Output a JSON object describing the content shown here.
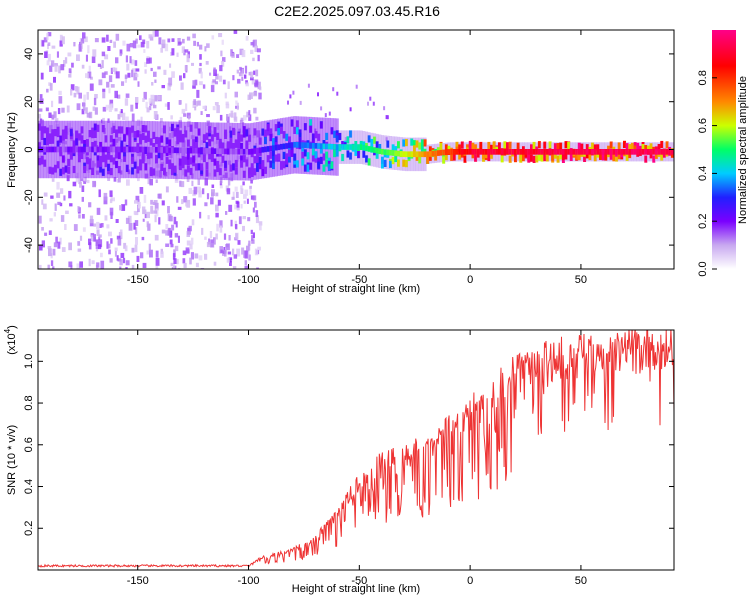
{
  "chart_data": [
    {
      "type": "heatmap",
      "title": "C2E2.2025.097.03.45.R16",
      "xlabel": "Height of straight line (km)",
      "ylabel": "Frequency (Hz)",
      "xlim": [
        -195,
        92
      ],
      "ylim": [
        -50,
        50
      ],
      "xticks": [
        -150,
        -100,
        -50,
        0,
        50
      ],
      "yticks": [
        -40,
        -20,
        0,
        20,
        40
      ],
      "colorbar": {
        "label": "Normalized spectral amplitude",
        "range": [
          0,
          1
        ],
        "ticks": [
          "0.0",
          "0.2",
          "0.4",
          "0.6",
          "0.8"
        ],
        "colors": [
          "#ffffff",
          "#c8a8f0",
          "#7a00ff",
          "#2020ff",
          "#00ccff",
          "#00ff66",
          "#ccff00",
          "#ff8800",
          "#ff0000",
          "#ff0088"
        ]
      },
      "ridge": {
        "description": "spectral ridge near 0 Hz",
        "points": [
          [
            -190,
            0
          ],
          [
            -150,
            0
          ],
          [
            -100,
            -1
          ],
          [
            -80,
            2
          ],
          [
            -60,
            1
          ],
          [
            -50,
            1
          ],
          [
            -40,
            -1
          ],
          [
            -30,
            -2
          ],
          [
            -20,
            -2
          ],
          [
            -10,
            -1
          ],
          [
            0,
            -1
          ],
          [
            20,
            -1
          ],
          [
            50,
            -1
          ],
          [
            90,
            -1
          ]
        ],
        "amplitude": [
          [
            -190,
            0.25
          ],
          [
            -150,
            0.25
          ],
          [
            -100,
            0.25
          ],
          [
            -90,
            0.35
          ],
          [
            -70,
            0.45
          ],
          [
            -50,
            0.55
          ],
          [
            -40,
            0.6
          ],
          [
            -25,
            0.75
          ],
          [
            -15,
            0.85
          ],
          [
            0,
            0.95
          ],
          [
            20,
            0.95
          ],
          [
            60,
            0.98
          ],
          [
            90,
            0.98
          ]
        ]
      }
    },
    {
      "type": "line",
      "xlabel": "Height of straight line (km)",
      "ylabel": "SNR (10 * v/v)",
      "yscale_label": "(x10",
      "yscale_exp": "4",
      "yscale_close": ")",
      "xlim": [
        -195,
        92
      ],
      "ylim": [
        0,
        1.15
      ],
      "xticks": [
        -150,
        -100,
        -50,
        0,
        50
      ],
      "yticks": [
        0.2,
        0.4,
        0.6,
        0.8,
        1.0
      ],
      "color": "#ee3333",
      "series": [
        {
          "name": "SNR",
          "envelope": [
            [
              -195,
              0.02
            ],
            [
              -100,
              0.02
            ],
            [
              -95,
              0.06
            ],
            [
              -80,
              0.1
            ],
            [
              -70,
              0.16
            ],
            [
              -60,
              0.28
            ],
            [
              -50,
              0.45
            ],
            [
              -40,
              0.55
            ],
            [
              -30,
              0.58
            ],
            [
              -20,
              0.62
            ],
            [
              -10,
              0.72
            ],
            [
              0,
              0.8
            ],
            [
              10,
              0.9
            ],
            [
              20,
              0.98
            ],
            [
              30,
              1.05
            ],
            [
              50,
              1.08
            ],
            [
              70,
              1.1
            ],
            [
              92,
              1.12
            ]
          ]
        }
      ]
    }
  ]
}
